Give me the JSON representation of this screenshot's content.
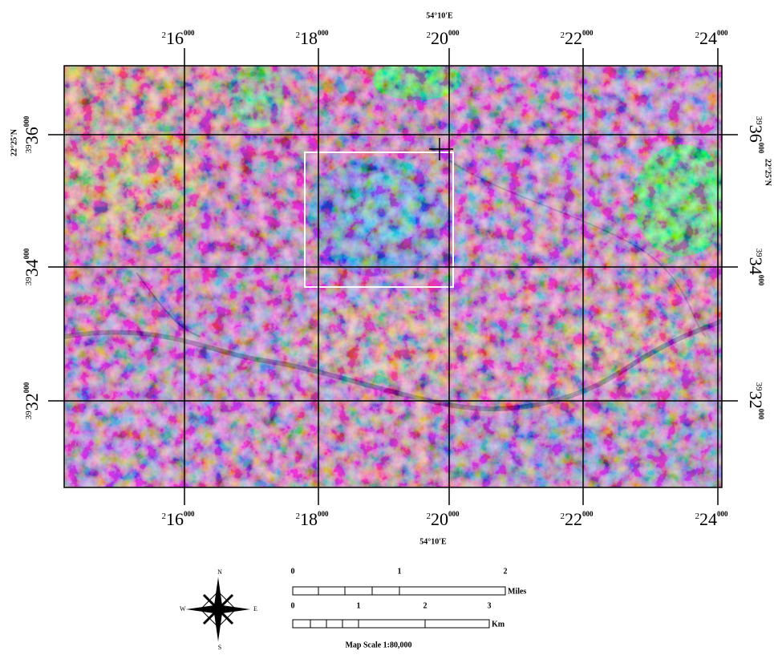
{
  "map": {
    "top_longitude": "54°10'E",
    "bottom_longitude": "54°10'E",
    "left_latitude": "22°25'N",
    "right_latitude": "22°25'N",
    "easting_labels": [
      {
        "lead": "2",
        "major": "16",
        "minor": "000"
      },
      {
        "lead": "2",
        "major": "18",
        "minor": "000"
      },
      {
        "lead": "2",
        "major": "20",
        "minor": "000"
      },
      {
        "lead": "2",
        "major": "22",
        "minor": "000"
      },
      {
        "lead": "2",
        "major": "24",
        "minor": "000"
      }
    ],
    "northing_labels": [
      {
        "lead": "39",
        "major": "36",
        "minor": "000"
      },
      {
        "lead": "39",
        "major": "34",
        "minor": "000"
      },
      {
        "lead": "39",
        "major": "32",
        "minor": "000"
      }
    ]
  },
  "scale_bar": {
    "miles_ticks": [
      "0",
      "1",
      "2"
    ],
    "miles_unit": "Miles",
    "km_ticks": [
      "0",
      "1",
      "2",
      "3"
    ],
    "km_unit": "Km",
    "caption": "Map Scale 1:80,000"
  },
  "north_arrow": {
    "n": "N",
    "s": "S",
    "e": "E",
    "w": "W"
  }
}
